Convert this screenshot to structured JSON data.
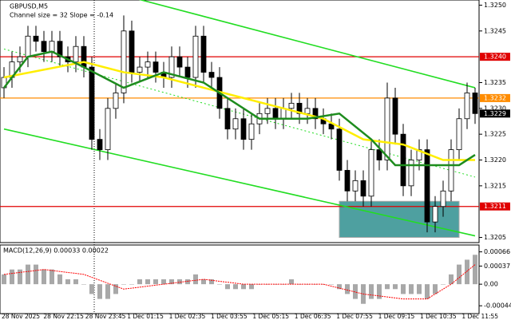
{
  "chart_data": {
    "type": "candlestick",
    "title": "GBPUSD,M5",
    "annotation": "Channel size = 32 Slope = -0.14",
    "indicator_label": "MACD(12,26,9) 0.00033 0.00022",
    "categories": [
      "28 Nov 2025",
      "28 Nov 22:15",
      "28 Nov 23:45",
      "1 Dec 01:15",
      "1 Dec 02:35",
      "1 Dec 03:55",
      "1 Dec 05:15",
      "1 Dec 06:35",
      "1 Dec 07:55",
      "1 Dec 09:15",
      "1 Dec 10:35",
      "1 Dec 11:55"
    ],
    "candles": {
      "open": [
        1.3234,
        1.3236,
        1.3239,
        1.324,
        1.3244,
        1.3243,
        1.3241,
        1.3243,
        1.324,
        1.3239,
        1.3242,
        1.3238,
        1.3224,
        1.3222,
        1.323,
        1.3233,
        1.3245,
        1.3237,
        1.3238,
        1.3239,
        1.3237,
        1.3236,
        1.324,
        1.3238,
        1.3236,
        1.3244,
        1.3237,
        1.3236,
        1.323,
        1.3226,
        1.3228,
        1.3224,
        1.3227,
        1.3229,
        1.323,
        1.3228,
        1.323,
        1.3231,
        1.3229,
        1.323,
        1.3228,
        1.3227,
        1.3226,
        1.3218,
        1.3214,
        1.3216,
        1.3213,
        1.3222,
        1.322,
        1.3232,
        1.3225,
        1.3215,
        1.322,
        1.3222,
        1.3208,
        1.3211,
        1.3214,
        1.3222,
        1.3228,
        1.3233
      ],
      "high": [
        1.3238,
        1.3241,
        1.3242,
        1.3246,
        1.3246,
        1.3245,
        1.3245,
        1.3245,
        1.3242,
        1.3244,
        1.3244,
        1.324,
        1.3226,
        1.3232,
        1.3235,
        1.3248,
        1.3247,
        1.324,
        1.3241,
        1.3241,
        1.3239,
        1.3242,
        1.3242,
        1.324,
        1.3246,
        1.3246,
        1.3239,
        1.3238,
        1.3232,
        1.323,
        1.323,
        1.3229,
        1.3231,
        1.3232,
        1.3232,
        1.3232,
        1.3233,
        1.3233,
        1.3232,
        1.3232,
        1.323,
        1.3229,
        1.3228,
        1.322,
        1.3218,
        1.3218,
        1.3224,
        1.3224,
        1.3235,
        1.3234,
        1.3227,
        1.3222,
        1.3224,
        1.3224,
        1.3213,
        1.3216,
        1.3224,
        1.323,
        1.3235,
        1.3234
      ],
      "low": [
        1.3232,
        1.3234,
        1.3237,
        1.3238,
        1.3241,
        1.3239,
        1.3239,
        1.3238,
        1.3237,
        1.3237,
        1.3236,
        1.3222,
        1.322,
        1.322,
        1.3228,
        1.3231,
        1.3235,
        1.3235,
        1.3236,
        1.3235,
        1.3234,
        1.3234,
        1.3236,
        1.3234,
        1.3234,
        1.3235,
        1.3234,
        1.3228,
        1.3224,
        1.3224,
        1.3222,
        1.3222,
        1.3225,
        1.3227,
        1.3226,
        1.3226,
        1.3228,
        1.3227,
        1.3227,
        1.3226,
        1.3225,
        1.3224,
        1.3216,
        1.3212,
        1.3212,
        1.3211,
        1.3211,
        1.3218,
        1.3218,
        1.3223,
        1.3213,
        1.3213,
        1.3218,
        1.3206,
        1.3206,
        1.3209,
        1.3212,
        1.322,
        1.3226,
        1.3227
      ],
      "close": [
        1.3236,
        1.3239,
        1.324,
        1.3244,
        1.3243,
        1.3241,
        1.3243,
        1.324,
        1.3239,
        1.3242,
        1.3238,
        1.3224,
        1.3222,
        1.323,
        1.3233,
        1.3245,
        1.3237,
        1.3238,
        1.3239,
        1.3237,
        1.3236,
        1.324,
        1.3238,
        1.3236,
        1.3244,
        1.3237,
        1.3236,
        1.323,
        1.3226,
        1.3228,
        1.3224,
        1.3227,
        1.3229,
        1.323,
        1.3228,
        1.323,
        1.3231,
        1.3229,
        1.323,
        1.3228,
        1.3227,
        1.3226,
        1.3218,
        1.3214,
        1.3216,
        1.3213,
        1.3222,
        1.322,
        1.3232,
        1.3225,
        1.3215,
        1.322,
        1.3222,
        1.3208,
        1.3211,
        1.3214,
        1.3222,
        1.3228,
        1.3233,
        1.3229
      ]
    },
    "moving_averages": [
      {
        "color": "#ffee00",
        "x": [
          0,
          10,
          15,
          20,
          25,
          30,
          35,
          40,
          45,
          50,
          55,
          59
        ],
        "values": [
          1.3236,
          1.3239,
          1.3237,
          1.3236,
          1.3234,
          1.3232,
          1.323,
          1.3228,
          1.3224,
          1.3223,
          1.322,
          1.322
        ]
      },
      {
        "color": "#1e8c1e",
        "x": [
          0,
          3,
          6,
          10,
          15,
          20,
          25,
          28,
          32,
          38,
          42,
          46,
          49,
          52,
          55,
          57,
          59
        ],
        "values": [
          1.3234,
          1.324,
          1.3241,
          1.3238,
          1.3234,
          1.3237,
          1.3235,
          1.3232,
          1.3228,
          1.3228,
          1.3229,
          1.3224,
          1.3219,
          1.3219,
          1.3219,
          1.3219,
          1.3221
        ]
      }
    ],
    "channel": {
      "color": "#22dd22",
      "upper": [
        1.3258,
        1.3234
      ],
      "middle": [
        1.32415,
        1.32167
      ],
      "lower": [
        1.3226,
        1.32053
      ]
    },
    "zone": {
      "color": "#2f8f8f",
      "from": 42,
      "to": 57,
      "top": 1.3212,
      "bottom": 1.3205
    },
    "levels": [
      {
        "value": 1.324,
        "label": "1.3240",
        "color": "#e00000"
      },
      {
        "value": 1.3232,
        "label": "1.3232",
        "color": "#ff8c00"
      },
      {
        "value": 1.3211,
        "label": "1.3211",
        "color": "#e00000"
      }
    ],
    "last_price": {
      "value": 1.3229,
      "label": "1.3229"
    },
    "ylim": [
      1.3204,
      1.3251
    ],
    "yticks": [
      {
        "value": 1.325,
        "label": "1.3250"
      },
      1.3245,
      1.3235,
      {
        "value": 1.323,
        "label": "1.3230"
      },
      1.3225,
      {
        "value": 1.322,
        "label": "1.3220"
      },
      1.3215,
      1.3205
    ],
    "macd": {
      "histogram": [
        0.0002,
        0.0003,
        0.0003,
        0.0004,
        0.0004,
        0.0003,
        0.0003,
        0.0002,
        0.0001,
        0.0001,
        0,
        -0.0002,
        -0.0003,
        -0.0003,
        -0.0002,
        0,
        0,
        0.0001,
        0.0001,
        0.0001,
        0.0001,
        0.0001,
        0.0001,
        0.0001,
        0.0002,
        0.0001,
        0.0001,
        0,
        -0.0001,
        -0.0001,
        -0.0001,
        -0.0001,
        0,
        0,
        0,
        0,
        0.0001,
        0,
        0,
        0,
        0,
        0,
        -0.0001,
        -0.0002,
        -0.0003,
        -0.0004,
        -0.0003,
        -0.0003,
        -0.0001,
        -0.0001,
        -0.0002,
        -0.0002,
        -0.0002,
        -0.0003,
        -0.0002,
        0,
        0.0002,
        0.0004,
        0.0005,
        0.0006
      ],
      "signal_color": "#ff0000",
      "signal_x": [
        0,
        5,
        10,
        15,
        20,
        25,
        30,
        35,
        40,
        45,
        50,
        53,
        56,
        59
      ],
      "signal": [
        0.0002,
        0.0003,
        0.0002,
        -0.0001,
        0,
        0.0001,
        0,
        0,
        0,
        -0.0002,
        -0.0003,
        -0.0003,
        0,
        0.0004
      ],
      "ylim": [
        -0.0006,
        0.0008
      ],
      "yticks": [
        0.00066,
        0.00037,
        {
          "value": 0,
          "label": "0.00"
        },
        -0.00044
      ]
    }
  }
}
